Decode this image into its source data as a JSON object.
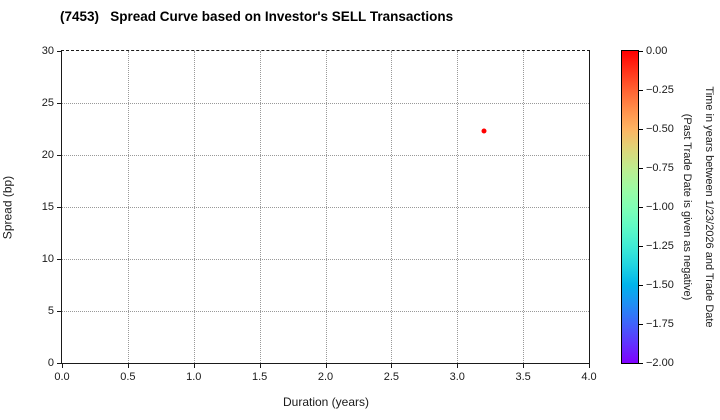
{
  "figure": {
    "background": "#ffffff"
  },
  "chart_data": {
    "type": "scatter",
    "title": "(7453)   Spread Curve based on Investor's SELL Transactions",
    "xlabel": "Duration (years)",
    "ylabel": "Spread (bp)",
    "xlim": [
      0.0,
      4.0
    ],
    "ylim": [
      0,
      30
    ],
    "grid": true,
    "grid_style": "dotted",
    "xtick_values": [
      0.0,
      0.5,
      1.0,
      1.5,
      2.0,
      2.5,
      3.0,
      3.5,
      4.0
    ],
    "xtick_labels": [
      "0.0",
      "0.5",
      "1.0",
      "1.5",
      "2.0",
      "2.5",
      "3.0",
      "3.5",
      "4.0"
    ],
    "ytick_values": [
      0,
      5,
      10,
      15,
      20,
      25,
      30
    ],
    "ytick_labels": [
      "0",
      "5",
      "10",
      "15",
      "20",
      "25",
      "30"
    ],
    "points": [
      {
        "x": 3.2,
        "y": 22.3,
        "color": "#ff0000",
        "colorbar_value": 0.0,
        "marker_px": 5
      }
    ],
    "colorbar": {
      "title_line1": "Time in years between 1/23/2026 and Trade Date",
      "title_line2": "(Past Trade Date is given as negative)",
      "range_top": 0.0,
      "range_bottom": -2.0,
      "tick_values": [
        0.0,
        -0.25,
        -0.5,
        -0.75,
        -1.0,
        -1.25,
        -1.5,
        -1.75,
        -2.0
      ],
      "tick_labels": [
        "0.00",
        "−0.25",
        "−0.50",
        "−0.75",
        "−1.00",
        "−1.25",
        "−1.50",
        "−1.75",
        "−2.00"
      ],
      "colormap": "rainbow",
      "gradient_stops_top_to_bottom": [
        "#ff0000",
        "#ff3219",
        "#ff6232",
        "#ff8e4a",
        "#ffb462",
        "#dfd478",
        "#bfec8e",
        "#9ffaa2",
        "#80ffb4",
        "#60fac5",
        "#40ecd4",
        "#20d4e1",
        "#00b4ec",
        "#208ef4",
        "#4062fa",
        "#6032fe",
        "#8000ff"
      ]
    },
    "colors": {
      "spine": "#1a1a1a",
      "grid": "#999999",
      "tick_label": "#1a1a1a",
      "point": "#ff0000"
    }
  }
}
